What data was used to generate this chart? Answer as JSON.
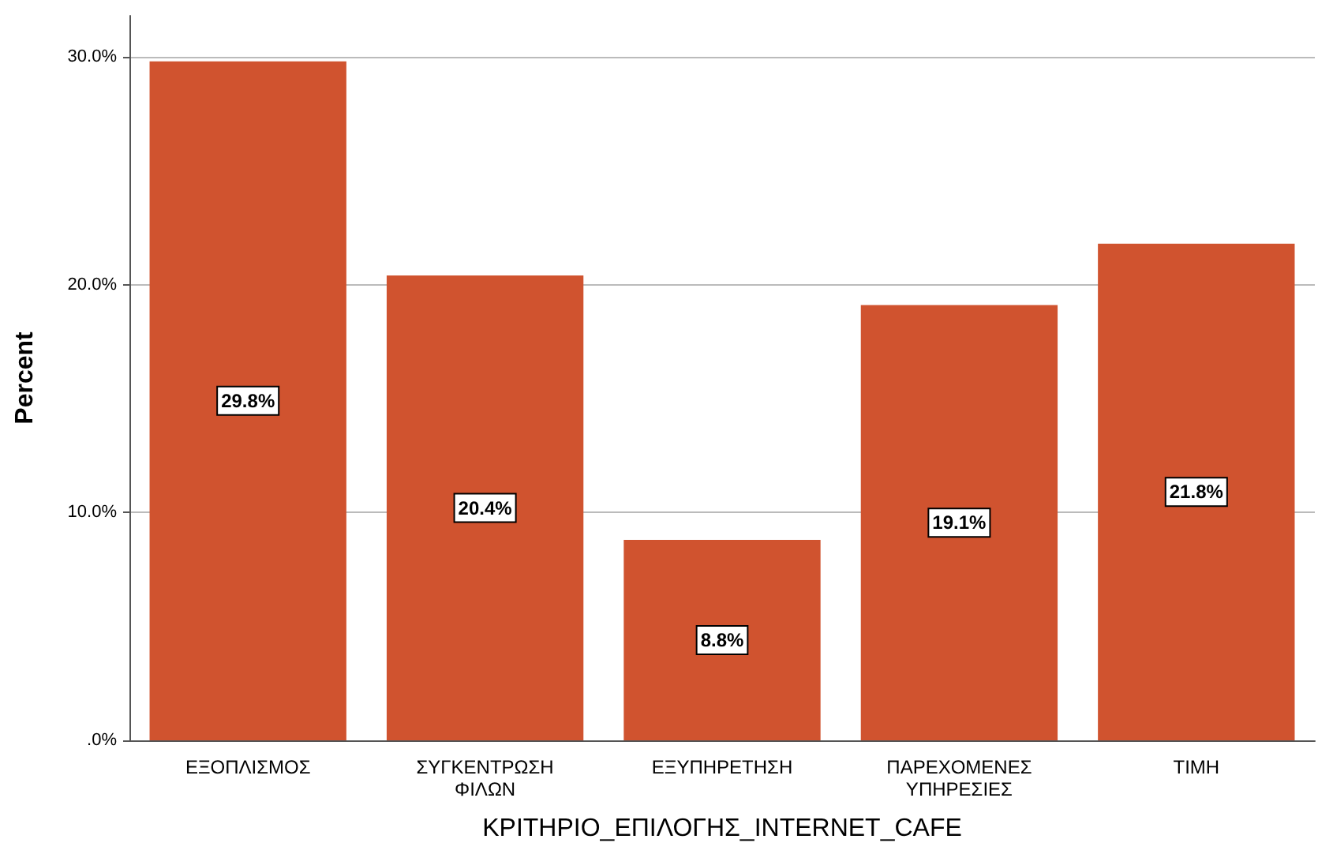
{
  "chart_data": {
    "type": "bar",
    "xlabel": "ΚΡΙΤΗΡΙΟ_ΕΠΙΛΟΓΗΣ_INTERNET_CAFE",
    "ylabel": "Percent",
    "categories": [
      "ΕΞΟΠΛΙΣΜΟΣ",
      "ΣΥΓΚΕΝΤΡΩΣΗ ΦΙΛΩΝ",
      "ΕΞΥΠΗΡΕΤΗΣΗ",
      "ΠΑΡΕΧΟΜΕΝΕΣ ΥΠΗΡΕΣΙΕΣ",
      "ΤΙΜΗ"
    ],
    "values": [
      29.8,
      20.4,
      8.8,
      19.1,
      21.8
    ],
    "value_labels": [
      "29.8%",
      "20.4%",
      "8.8%",
      "19.1%",
      "21.8%"
    ],
    "color": "#d0532f",
    "ylim": [
      0,
      31.8
    ],
    "yticks": [
      {
        "value": 0,
        "label": ".0%"
      },
      {
        "value": 10,
        "label": "10.0%"
      },
      {
        "value": 20,
        "label": "20.0%"
      },
      {
        "value": 30,
        "label": "30.0%"
      }
    ],
    "grid": "y"
  }
}
